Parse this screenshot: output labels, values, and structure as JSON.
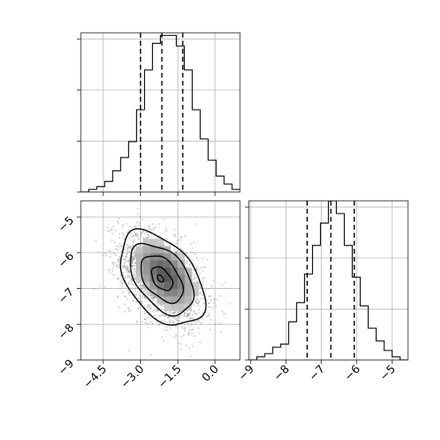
{
  "chart_data": [
    {
      "type": "histogram",
      "panel": "marginal-x",
      "xlim": [
        -5.4,
        1.0
      ],
      "bins_start": -5.4,
      "bin_width": 0.32,
      "counts": [
        0,
        1,
        2,
        4,
        8,
        13,
        19,
        31,
        46,
        56,
        59,
        59,
        55,
        46,
        31,
        20,
        12,
        6,
        3,
        1
      ],
      "ylim": [
        0,
        60
      ],
      "quantiles": [
        -3.0,
        -2.14,
        -1.3
      ],
      "grid": true,
      "y_tick_labels": "hidden"
    },
    {
      "type": "histogram",
      "panel": "marginal-y",
      "xlim": [
        -9.05,
        -4.55
      ],
      "bins_start": -9.05,
      "bin_width": 0.225,
      "counts": [
        0,
        1,
        2,
        4,
        5,
        12,
        18,
        27,
        36,
        43,
        50,
        46,
        36,
        26,
        17,
        10,
        6,
        3,
        1,
        0
      ],
      "ylim": [
        0,
        50
      ],
      "quantiles": [
        -7.4,
        -6.73,
        -6.07
      ],
      "grid": true,
      "x_tick_labels": [
        "−9",
        "−8",
        "−7",
        "−6",
        "−5"
      ],
      "x_ticks": [
        -9,
        -8,
        -7,
        -6,
        -5
      ],
      "y_tick_labels": "hidden"
    },
    {
      "type": "scatter",
      "panel": "joint",
      "xlim": [
        -5.4,
        1.0
      ],
      "ylim": [
        -9.0,
        -4.55
      ],
      "x_tick_labels": [
        "−4.5",
        "−3.0",
        "−1.5",
        "0.0"
      ],
      "x_ticks": [
        -4.5,
        -3.0,
        -1.5,
        0.0
      ],
      "y_tick_labels": [
        "−5",
        "−6",
        "−7",
        "−8",
        "−9"
      ],
      "y_ticks": [
        -5,
        -6,
        -7,
        -8,
        -9
      ],
      "center": [
        -2.14,
        -6.73
      ],
      "sigma": [
        0.85,
        0.66
      ],
      "correlation": -0.45,
      "n_points": 2200,
      "contour_levels_sigma": [
        0.5,
        1.0,
        1.5,
        2.0
      ],
      "peak_center": [
        -2.2,
        -6.72
      ],
      "grid": true
    }
  ],
  "colors": {
    "line": "#000000",
    "grid": "#b0b0b0",
    "points": "#7f7f7f"
  }
}
